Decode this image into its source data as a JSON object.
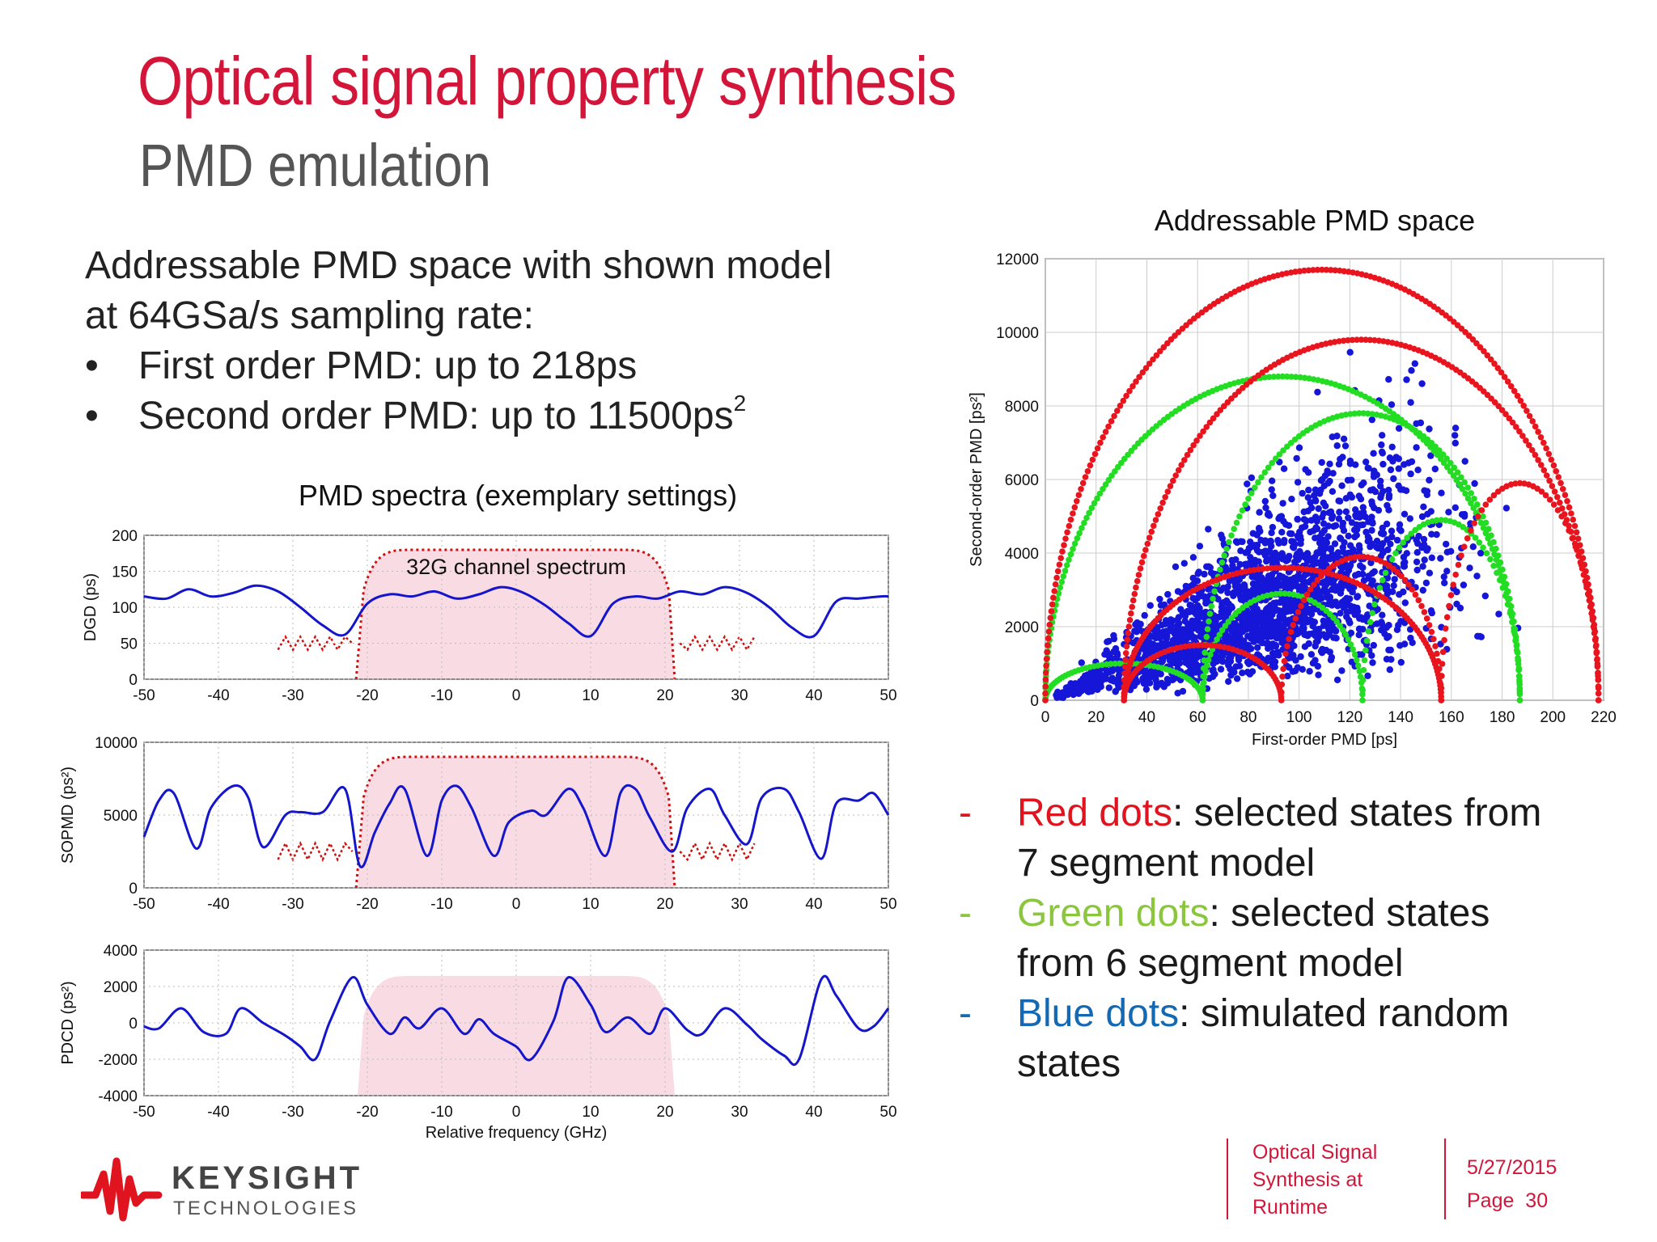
{
  "slide": {
    "title": "Optical signal property synthesis",
    "subtitle": "PMD emulation",
    "intro": {
      "line1": "Addressable PMD space with shown model",
      "line2": "at 64GSa/s sampling rate:",
      "bullet1": "First order PMD: up to 218ps",
      "bullet2_text": "Second order PMD:  up to 11500ps",
      "bullet2_sup": "2",
      "bullet_glyph": "•"
    },
    "legend": {
      "dash": "-",
      "items": [
        {
          "label": "Red dots",
          "rest": ": selected states from",
          "cont": "7 segment model",
          "color": "#e0141e"
        },
        {
          "label": "Green dots",
          "rest": ": selected states",
          "cont": "from 6 segment model",
          "color": "#8cc63f"
        },
        {
          "label": "Blue dots",
          "rest": ": simulated random",
          "cont": "states",
          "color": "#1569b3"
        }
      ]
    },
    "footer": {
      "doc_line1": "Optical Signal",
      "doc_line2": "Synthesis at",
      "doc_line3": "Runtime",
      "date": "5/27/2015",
      "page_label": "Page",
      "page_number": "30"
    },
    "logo": {
      "name": "KEYSIGHT",
      "sub": "TECHNOLOGIES",
      "color": "#e0141e"
    }
  },
  "chart_data": [
    {
      "type": "line",
      "title": "PMD spectra (exemplary settings)",
      "panel": "DGD",
      "ylabel": "DGD (ps)",
      "xlim": [
        -50,
        50
      ],
      "ylim": [
        0,
        200
      ],
      "yticks": [
        0,
        50,
        100,
        150,
        200
      ],
      "xticks": [
        -50,
        -40,
        -30,
        -20,
        -10,
        0,
        10,
        20,
        30,
        40,
        50
      ],
      "annotation": "32G channel spectrum",
      "series": [
        {
          "color": "#1515cc",
          "x": [
            -50,
            -47,
            -44,
            -41,
            -38,
            -35,
            -32,
            -29,
            -26,
            -23,
            -20,
            -17,
            -14,
            -11,
            -8,
            -5,
            -2,
            1,
            4,
            7,
            10,
            13,
            16,
            19,
            22,
            25,
            28,
            31,
            34,
            37,
            40,
            43,
            46,
            49,
            50
          ],
          "y": [
            115,
            112,
            125,
            115,
            120,
            130,
            122,
            100,
            75,
            62,
            105,
            118,
            115,
            122,
            112,
            118,
            128,
            120,
            102,
            78,
            60,
            105,
            115,
            112,
            122,
            118,
            128,
            120,
            100,
            72,
            60,
            108,
            112,
            115,
            115
          ]
        }
      ]
    },
    {
      "type": "line",
      "panel": "SOPMD",
      "ylabel": "SOPMD (ps²)",
      "xlim": [
        -50,
        50
      ],
      "ylim": [
        0,
        10000
      ],
      "yticks": [
        0,
        5000,
        10000
      ],
      "xticks": [
        -50,
        -40,
        -30,
        -20,
        -10,
        0,
        10,
        20,
        30,
        40,
        50
      ],
      "series": [
        {
          "color": "#1515cc",
          "x": [
            -50,
            -48,
            -46,
            -43,
            -41,
            -38,
            -36,
            -34,
            -31,
            -29,
            -26,
            -23,
            -21,
            -19,
            -17,
            -15,
            -12,
            -10,
            -8,
            -6,
            -3,
            -1,
            2,
            4,
            7,
            9,
            12,
            14,
            16,
            18,
            21,
            23,
            26,
            28,
            31,
            33,
            36,
            38,
            41,
            43,
            46,
            48,
            50
          ],
          "y": [
            3500,
            6000,
            6500,
            2700,
            5500,
            7000,
            6200,
            2800,
            5000,
            5200,
            5200,
            6800,
            1500,
            3800,
            5800,
            6800,
            2200,
            6000,
            7000,
            5500,
            2200,
            4500,
            5300,
            5000,
            6800,
            5500,
            2200,
            6500,
            6800,
            4800,
            2500,
            5500,
            6800,
            5000,
            3000,
            6200,
            6800,
            5200,
            2000,
            5800,
            6000,
            6500,
            5000
          ]
        }
      ]
    },
    {
      "type": "line",
      "panel": "PDCD",
      "ylabel": "PDCD (ps²)",
      "xlabel": "Relative frequency (GHz)",
      "xlim": [
        -50,
        50
      ],
      "ylim": [
        -4000,
        4000
      ],
      "yticks": [
        -4000,
        -2000,
        0,
        2000,
        4000
      ],
      "xticks": [
        -50,
        -40,
        -30,
        -20,
        -10,
        0,
        10,
        20,
        30,
        40,
        50
      ],
      "series": [
        {
          "color": "#1515cc",
          "x": [
            -50,
            -48,
            -45,
            -42,
            -39,
            -37,
            -34,
            -31,
            -29,
            -27,
            -25,
            -22,
            -20,
            -17,
            -15,
            -13,
            -10,
            -7,
            -5,
            -3,
            0,
            2,
            5,
            7,
            10,
            12,
            15,
            18,
            20,
            23,
            25,
            28,
            31,
            33,
            36,
            38,
            41,
            43,
            46,
            48,
            50
          ],
          "y": [
            -200,
            -300,
            800,
            -500,
            -600,
            800,
            0,
            -700,
            -1300,
            -2000,
            100,
            2500,
            1000,
            -600,
            300,
            -300,
            800,
            -600,
            200,
            -600,
            -1300,
            -2000,
            100,
            2500,
            1000,
            -500,
            300,
            -600,
            800,
            -400,
            -600,
            800,
            -100,
            -900,
            -1800,
            -2000,
            2400,
            1500,
            -300,
            -200,
            800
          ]
        }
      ]
    },
    {
      "type": "scatter",
      "title": "Addressable PMD space",
      "xlabel": "First-order PMD [ps]",
      "ylabel": "Second-order PMD [ps²]",
      "xlim": [
        0,
        220
      ],
      "ylim": [
        0,
        12000
      ],
      "xticks": [
        0,
        20,
        40,
        60,
        80,
        100,
        120,
        140,
        160,
        180,
        200,
        220
      ],
      "yticks": [
        0,
        2000,
        4000,
        6000,
        8000,
        10000,
        12000
      ],
      "grid": true,
      "series": [
        {
          "name": "Red dots",
          "color": "#e8141e",
          "arcs": [
            {
              "x0": 0,
              "x1": 218,
              "peak": 11700
            },
            {
              "x0": 31,
              "x1": 218,
              "peak": 9800
            },
            {
              "x0": 156,
              "x1": 218,
              "peak": 5900
            },
            {
              "x0": 31,
              "x1": 156,
              "peak": 3600
            },
            {
              "x0": 93,
              "x1": 156,
              "peak": 3900
            },
            {
              "x0": 31,
              "x1": 93,
              "peak": 1500
            }
          ]
        },
        {
          "name": "Green dots",
          "color": "#22dd22",
          "arcs": [
            {
              "x0": 0,
              "x1": 187,
              "peak": 8800
            },
            {
              "x0": 62,
              "x1": 187,
              "peak": 7800
            },
            {
              "x0": 125,
              "x1": 187,
              "peak": 4900
            },
            {
              "x0": 62,
              "x1": 125,
              "peak": 2900
            },
            {
              "x0": 0,
              "x1": 62,
              "peak": 1000
            }
          ]
        },
        {
          "name": "Blue dots",
          "color": "#1616d8",
          "cloud": {
            "x_range": [
              5,
              190
            ],
            "y_max": 10000,
            "count": 2200
          }
        }
      ]
    }
  ]
}
